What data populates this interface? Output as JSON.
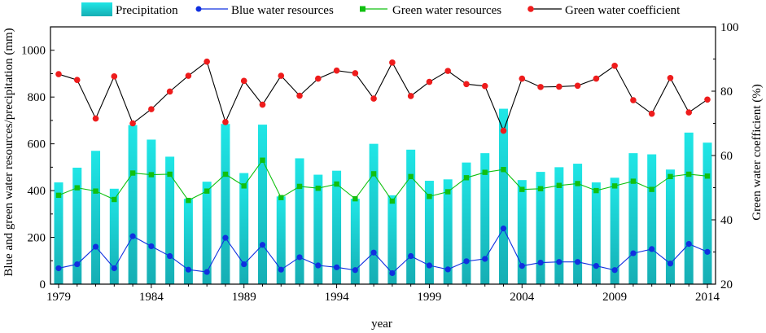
{
  "chart_data": {
    "type": "bar+line",
    "title": "",
    "xlabel": "year",
    "ylabel_left": "Blue and green water resources/precipitation (mm)",
    "ylabel_right": "Green water coefficient (%)",
    "ylim_left": [
      0,
      1100
    ],
    "ylim_right": [
      20,
      100
    ],
    "yticks_left": [
      0,
      200,
      400,
      600,
      800,
      1000
    ],
    "yticks_right": [
      20,
      40,
      60,
      80,
      100
    ],
    "xticks": [
      1979,
      1984,
      1989,
      1994,
      1999,
      2004,
      2009,
      2014
    ],
    "legend_position": "top",
    "categories": [
      1979,
      1980,
      1981,
      1982,
      1983,
      1984,
      1985,
      1986,
      1987,
      1988,
      1989,
      1990,
      1991,
      1992,
      1993,
      1994,
      1995,
      1996,
      1997,
      1998,
      1999,
      2000,
      2001,
      2002,
      2003,
      2004,
      2005,
      2006,
      2007,
      2008,
      2009,
      2010,
      2011,
      2012,
      2013,
      2014
    ],
    "series": [
      {
        "name": "Precipitation",
        "kind": "bar",
        "axis": "left",
        "color": "#1ecad0",
        "values": [
          435,
          498,
          570,
          408,
          680,
          618,
          545,
          365,
          438,
          685,
          475,
          682,
          375,
          538,
          468,
          485,
          365,
          600,
          380,
          575,
          442,
          448,
          520,
          560,
          750,
          445,
          480,
          500,
          515,
          435,
          455,
          560,
          555,
          490,
          648,
          605
        ]
      },
      {
        "name": "Blue water resources",
        "kind": "line",
        "axis": "left",
        "color": "#1030e0",
        "values": [
          68,
          85,
          160,
          68,
          205,
          162,
          120,
          62,
          52,
          198,
          85,
          168,
          62,
          115,
          80,
          72,
          60,
          135,
          47,
          120,
          80,
          63,
          98,
          108,
          238,
          78,
          92,
          95,
          95,
          78,
          60,
          132,
          150,
          88,
          172,
          138
        ]
      },
      {
        "name": "Green water resources",
        "kind": "line",
        "axis": "left",
        "color": "#10c010",
        "values": [
          380,
          412,
          398,
          362,
          475,
          468,
          470,
          358,
          398,
          470,
          420,
          530,
          370,
          418,
          410,
          428,
          365,
          472,
          355,
          460,
          375,
          395,
          455,
          478,
          490,
          405,
          408,
          422,
          430,
          400,
          420,
          440,
          405,
          460,
          470,
          462
        ]
      },
      {
        "name": "Green water coefficient",
        "kind": "line",
        "axis": "right",
        "color": "#ee1c1c",
        "line_color": "#000000",
        "values": [
          85.3,
          83.5,
          71.5,
          84.6,
          70.0,
          74.4,
          79.9,
          84.8,
          89.2,
          70.4,
          83.2,
          75.8,
          84.8,
          78.6,
          83.9,
          86.4,
          85.6,
          77.7,
          88.9,
          78.5,
          82.9,
          86.3,
          82.2,
          81.6,
          67.7,
          83.9,
          81.3,
          81.4,
          81.7,
          83.9,
          87.9,
          77.2,
          73.0,
          84.1,
          73.4,
          77.4
        ]
      }
    ]
  }
}
